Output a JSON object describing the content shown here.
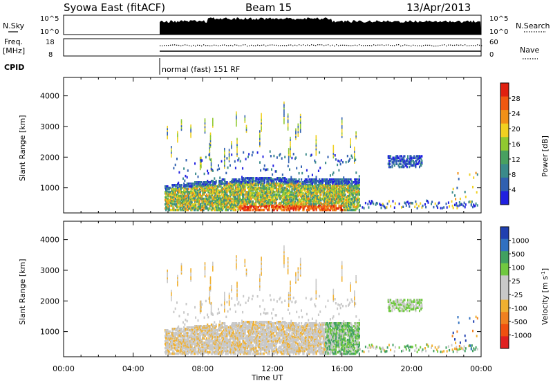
{
  "header": {
    "station": "Syowa East (fitACF)",
    "beam": "Beam 15",
    "date": "13/Apr/2013"
  },
  "top_panel": {
    "left_label": "N.Sky",
    "right_label": "N.Search",
    "left_ticks": [
      "10^5",
      "10^0"
    ],
    "right_ticks": [
      "10^5",
      "10^0"
    ]
  },
  "freq_panel": {
    "left_label": "Freq.",
    "left_unit": "[MHz]",
    "left_ticks": [
      "18",
      "8"
    ],
    "right_label": "Nave",
    "right_ticks": [
      "60",
      "0"
    ]
  },
  "cpid": {
    "label": "CPID",
    "program": "normal (fast) 151 RF"
  },
  "x_axis": {
    "label": "Time UT",
    "ticks": [
      "00:00",
      "04:00",
      "08:00",
      "12:00",
      "16:00",
      "20:00",
      "00:00"
    ]
  },
  "chart_data": [
    {
      "type": "heatmap",
      "name": "power",
      "ylabel": "Slant Range [km]",
      "y_ticks": [
        1000,
        2000,
        3000,
        4000
      ],
      "ylim": [
        180,
        4600
      ],
      "xlim_hours": [
        0,
        24
      ],
      "colorbar_label": "Power [dB]",
      "colorbar_ticks": [
        "28",
        "24",
        "20",
        "16",
        "12",
        "8",
        "4"
      ],
      "colorbar_colors": [
        "#e02010",
        "#f05810",
        "#f09018",
        "#f0d020",
        "#90c830",
        "#48a060",
        "#3a8a8a",
        "#3060b0",
        "#2020e0"
      ]
    },
    {
      "type": "heatmap",
      "name": "velocity",
      "ylabel": "Slant Range [km]",
      "y_ticks": [
        1000,
        2000,
        3000,
        4000
      ],
      "ylim": [
        180,
        4600
      ],
      "xlim_hours": [
        0,
        24
      ],
      "colorbar_label": "Velocity [m s^-1]",
      "colorbar_ticks": [
        "1000",
        "500",
        "100",
        "25",
        "-25",
        "-100",
        "-500",
        "-1000"
      ],
      "colorbar_colors": [
        "#2040b0",
        "#3070c0",
        "#40a060",
        "#70c840",
        "#c8c8c8",
        "#c8c8c8",
        "#f0b030",
        "#f08020",
        "#f05010",
        "#e02020"
      ]
    }
  ],
  "colors": {
    "axis": "#000000",
    "background": "#ffffff"
  }
}
